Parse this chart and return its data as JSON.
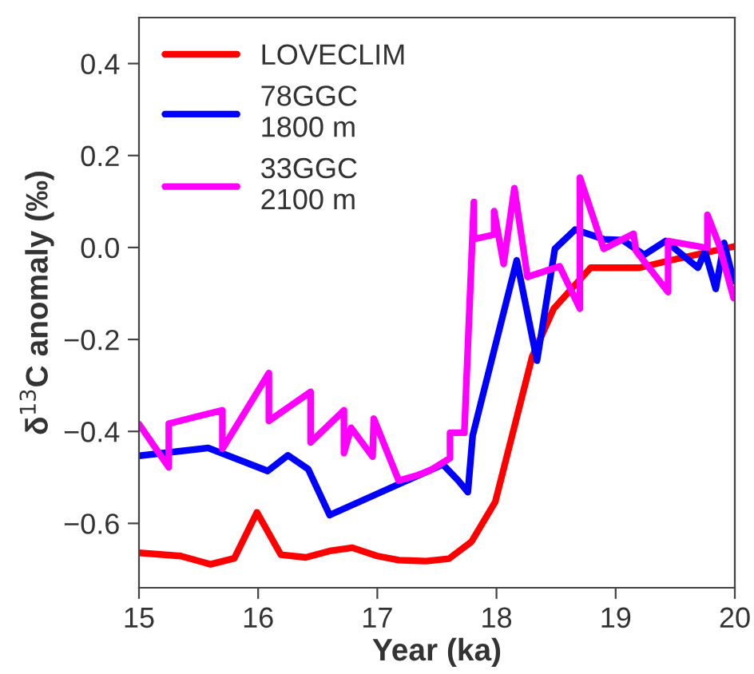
{
  "chart_data": {
    "type": "line",
    "xlabel": "Year (ka)",
    "ylabel": "δ$^{13}$C anomaly (‰)",
    "xlim": [
      15,
      20
    ],
    "ylim": [
      -0.74,
      0.5
    ],
    "xticks": [
      15,
      16,
      17,
      18,
      19,
      20
    ],
    "yticks": [
      {
        "value": -0.6,
        "label": "−0.6"
      },
      {
        "value": -0.4,
        "label": "−0.4"
      },
      {
        "value": -0.2,
        "label": "−0.2"
      },
      {
        "value": 0.0,
        "label": "0.0"
      },
      {
        "value": 0.2,
        "label": "0.2"
      },
      {
        "value": 0.4,
        "label": "0.4"
      }
    ],
    "grid": false,
    "legend": "top left",
    "marker": "none",
    "line_style": "solid",
    "series": [
      {
        "name": "LOVECLIM",
        "color": "#ff0000",
        "x": [
          15.0,
          15.35,
          15.6,
          15.8,
          15.99,
          16.19,
          16.4,
          16.6,
          16.79,
          17.0,
          17.18,
          17.41,
          17.6,
          17.79,
          17.99,
          18.3,
          18.48,
          18.79,
          19.2,
          19.46,
          19.99
        ],
        "values": [
          -0.664,
          -0.671,
          -0.689,
          -0.676,
          -0.576,
          -0.668,
          -0.674,
          -0.66,
          -0.653,
          -0.671,
          -0.68,
          -0.682,
          -0.677,
          -0.64,
          -0.553,
          -0.237,
          -0.133,
          -0.044,
          -0.044,
          -0.028,
          0.002
        ]
      },
      {
        "name": "78GGC\n1800 m",
        "color": "#0000ff",
        "x": [
          15.0,
          15.58,
          16.08,
          16.25,
          16.42,
          16.6,
          17.55,
          17.68,
          17.76,
          17.8,
          18.17,
          18.34,
          18.49,
          18.66,
          18.9,
          19.06,
          19.24,
          19.42,
          19.69,
          19.75,
          19.84,
          19.91,
          19.99
        ],
        "values": [
          -0.453,
          -0.436,
          -0.486,
          -0.452,
          -0.482,
          -0.582,
          -0.472,
          -0.507,
          -0.532,
          -0.409,
          -0.028,
          -0.246,
          -0.003,
          0.039,
          0.018,
          0.016,
          -0.016,
          0.014,
          -0.044,
          -0.009,
          -0.09,
          0.01,
          -0.073
        ]
      },
      {
        "name": "33GGC\n2100 m",
        "color": "#ff00ff",
        "x": [
          15.0,
          15.25,
          15.25,
          15.7,
          15.7,
          16.09,
          16.09,
          16.44,
          16.44,
          16.72,
          16.72,
          16.78,
          16.96,
          16.97,
          17.18,
          17.34,
          17.45,
          17.61,
          17.61,
          17.73,
          17.81,
          17.81,
          17.98,
          17.98,
          18.06,
          18.15,
          18.26,
          18.53,
          18.7,
          18.7,
          18.9,
          19.15,
          19.17,
          19.44,
          19.44,
          19.77,
          19.77,
          19.87,
          19.99
        ],
        "values": [
          -0.384,
          -0.478,
          -0.383,
          -0.354,
          -0.438,
          -0.273,
          -0.377,
          -0.314,
          -0.424,
          -0.354,
          -0.447,
          -0.392,
          -0.455,
          -0.372,
          -0.507,
          -0.495,
          -0.484,
          -0.458,
          -0.403,
          -0.403,
          0.099,
          0.018,
          0.028,
          0.079,
          -0.036,
          0.129,
          -0.064,
          -0.041,
          -0.133,
          0.152,
          -0.003,
          0.03,
          -0.007,
          -0.097,
          0.014,
          -0.001,
          0.071,
          0.004,
          -0.11
        ]
      }
    ]
  }
}
